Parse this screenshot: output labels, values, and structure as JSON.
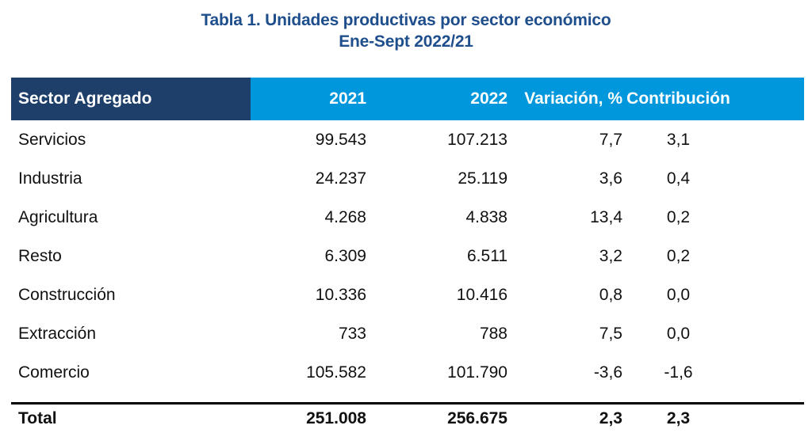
{
  "title": {
    "line1": "Tabla 1. Unidades productivas por sector económico",
    "line2": "Ene-Sept 2022/21"
  },
  "colors": {
    "title": "#1f4e8c",
    "header_dark": "#1f3f6b",
    "header_light": "#0097dc"
  },
  "table": {
    "headers": {
      "sector": "Sector Agregado",
      "y2021": "2021",
      "y2022": "2022",
      "variacion": "Variación, %",
      "contribucion": "Contribución"
    },
    "rows": [
      {
        "sector": "Servicios",
        "y2021": "99.543",
        "y2022": "107.213",
        "variacion": "7,7",
        "contribucion": "3,1"
      },
      {
        "sector": "Industria",
        "y2021": "24.237",
        "y2022": "25.119",
        "variacion": "3,6",
        "contribucion": "0,4"
      },
      {
        "sector": "Agricultura",
        "y2021": "4.268",
        "y2022": "4.838",
        "variacion": "13,4",
        "contribucion": "0,2"
      },
      {
        "sector": "Resto",
        "y2021": "6.309",
        "y2022": "6.511",
        "variacion": "3,2",
        "contribucion": "0,2"
      },
      {
        "sector": "Construcción",
        "y2021": "10.336",
        "y2022": "10.416",
        "variacion": "0,8",
        "contribucion": "0,0"
      },
      {
        "sector": "Extracción",
        "y2021": "733",
        "y2022": "788",
        "variacion": "7,5",
        "contribucion": "0,0"
      },
      {
        "sector": "Comercio",
        "y2021": "105.582",
        "y2022": "101.790",
        "variacion": "-3,6",
        "contribucion": "-1,6"
      }
    ],
    "total": {
      "sector": "Total",
      "y2021": "251.008",
      "y2022": "256.675",
      "variacion": "2,3",
      "contribucion": "2,3"
    }
  }
}
